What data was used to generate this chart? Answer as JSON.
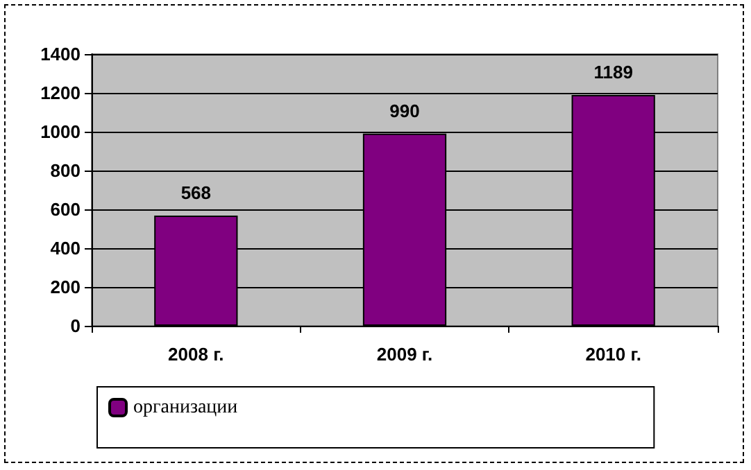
{
  "chart_data": {
    "type": "bar",
    "categories": [
      "2008 г.",
      "2009 г.",
      "2010 г."
    ],
    "series": [
      {
        "name": "организации",
        "color": "#800080",
        "values": [
          568,
          990,
          1189
        ]
      }
    ],
    "ylim": [
      0,
      1400
    ],
    "yticks": [
      0,
      200,
      400,
      600,
      800,
      1000,
      1200,
      1400
    ],
    "grid": "y",
    "legend": "bottom",
    "data_labels": true
  }
}
